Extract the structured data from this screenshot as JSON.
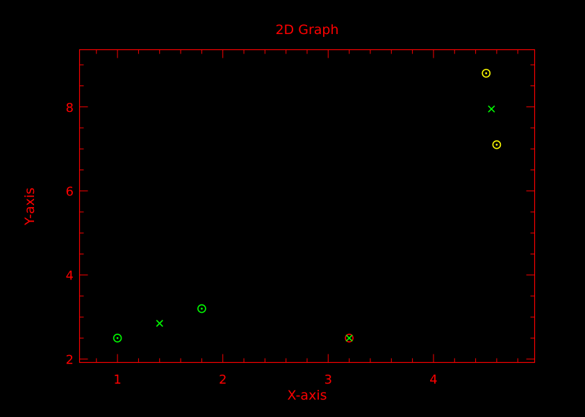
{
  "colors": {
    "background": "#000000",
    "axes": "#ff0000",
    "text": "#ff0000",
    "green": "#00ff00",
    "yellow": "#ffff00"
  },
  "chart_data": {
    "type": "scatter",
    "title": "2D Graph",
    "xlabel": "X-axis",
    "ylabel": "Y-axis",
    "xlim": [
      0.64,
      4.96
    ],
    "ylim": [
      1.92,
      9.36
    ],
    "x_ticks": [
      1,
      2,
      3,
      4
    ],
    "y_ticks": [
      2,
      4,
      6,
      8
    ],
    "x_minor_step": 0.2,
    "y_minor_step": 0.5,
    "grid": false,
    "points": [
      {
        "x": 1.0,
        "y": 2.5,
        "marker": "circle-dot",
        "color": "#00ff00"
      },
      {
        "x": 1.4,
        "y": 2.85,
        "marker": "x",
        "color": "#00ff00"
      },
      {
        "x": 1.8,
        "y": 3.2,
        "marker": "circle-dot",
        "color": "#00ff00"
      },
      {
        "x": 3.2,
        "y": 2.5,
        "marker": "circle",
        "color": "#ff0000"
      },
      {
        "x": 3.2,
        "y": 2.5,
        "marker": "x",
        "color": "#00ff00"
      },
      {
        "x": 4.5,
        "y": 8.8,
        "marker": "circle-dot",
        "color": "#ffff00"
      },
      {
        "x": 4.55,
        "y": 7.95,
        "marker": "x",
        "color": "#00ff00"
      },
      {
        "x": 4.6,
        "y": 7.1,
        "marker": "circle-dot",
        "color": "#ffff00"
      }
    ]
  }
}
